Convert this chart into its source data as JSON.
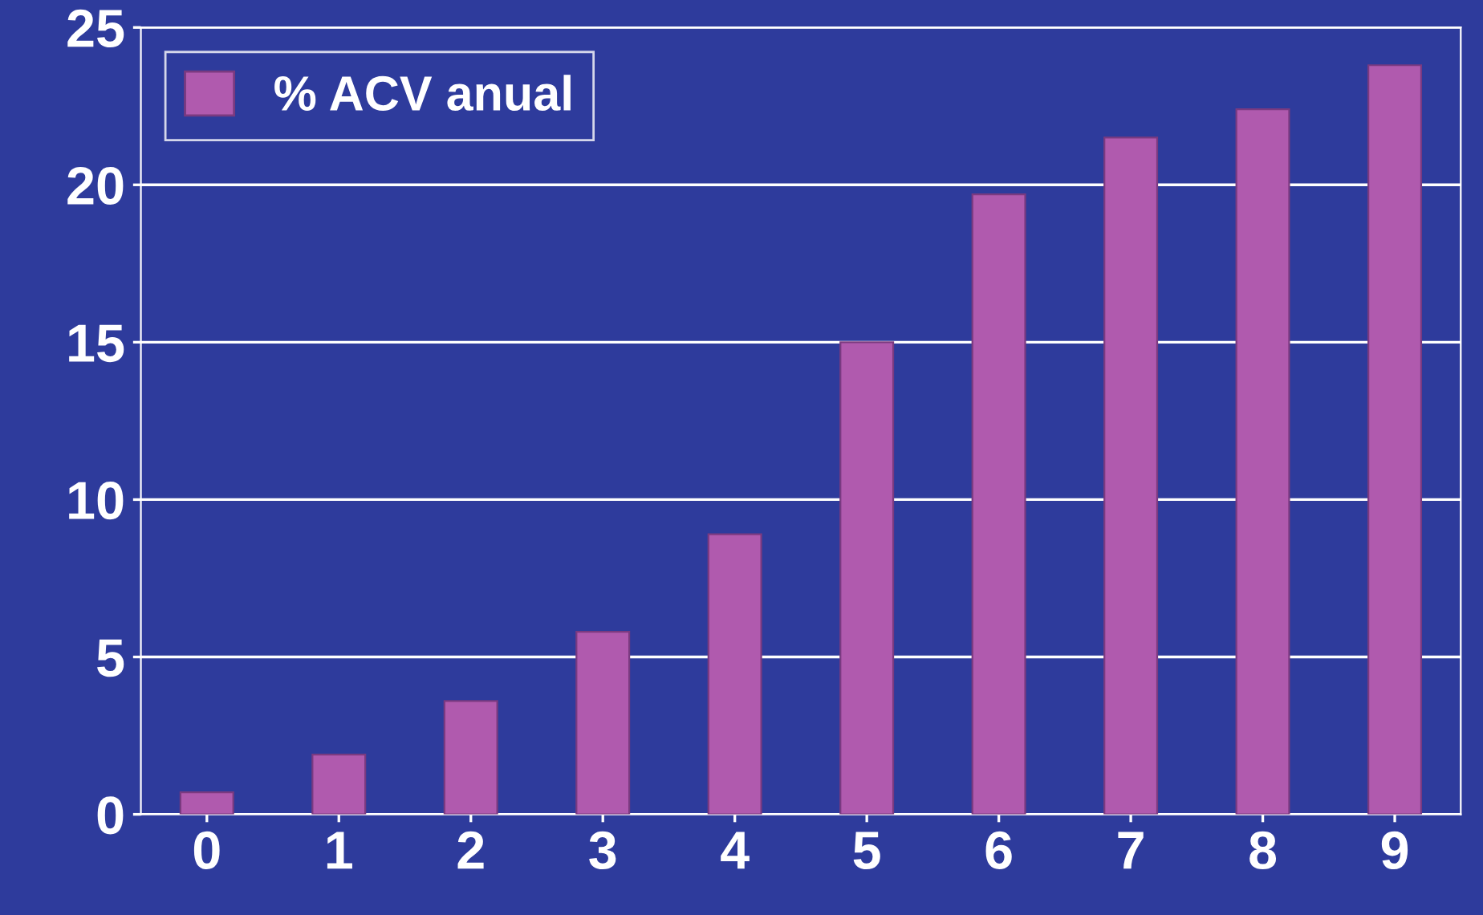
{
  "chart_data": {
    "type": "bar",
    "categories": [
      "0",
      "1",
      "2",
      "3",
      "4",
      "5",
      "6",
      "7",
      "8",
      "9"
    ],
    "series": [
      {
        "name": "% ACV anual",
        "color": "#b05aae",
        "values": [
          0.7,
          1.9,
          3.6,
          5.8,
          8.9,
          15,
          19.7,
          21.5,
          22.4,
          23.8
        ]
      }
    ],
    "ylim": [
      0,
      25
    ],
    "yticks": [
      0,
      5,
      10,
      15,
      20,
      25
    ],
    "grid": "y",
    "legend": "top left"
  }
}
